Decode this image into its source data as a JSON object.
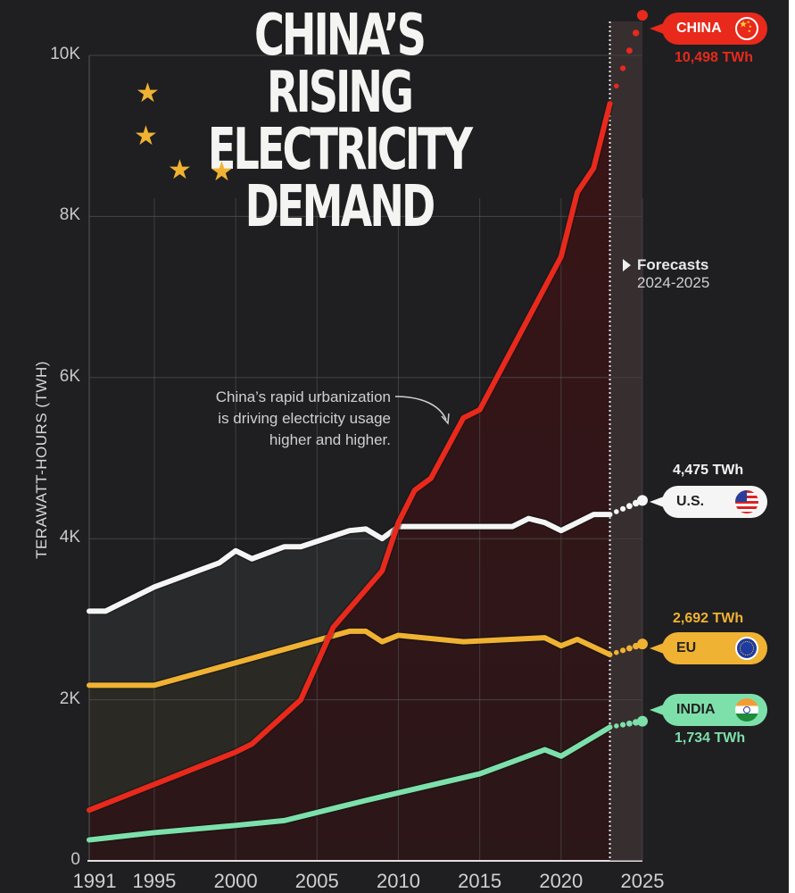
{
  "header": {
    "title_lines": [
      "CHINA’S RISING",
      "ELECTRICITY",
      "DEMAND"
    ],
    "decoration": "star-icon"
  },
  "annotation": {
    "lines": [
      "China’s rapid urbanization",
      "is driving electricity usage",
      "higher and higher."
    ]
  },
  "forecast": {
    "label": "Forecasts",
    "range": "2024-2025"
  },
  "callouts": {
    "china": {
      "name": "CHINA",
      "value": "10,498 TWh",
      "flag": "china-flag-icon"
    },
    "us": {
      "name": "U.S.",
      "value": "4,475 TWh",
      "flag": "us-flag-icon"
    },
    "eu": {
      "name": "EU",
      "value": "2,692 TWh",
      "flag": "eu-flag-icon"
    },
    "india": {
      "name": "INDIA",
      "value": "1,734 TWh",
      "flag": "india-flag-icon"
    }
  },
  "colors": {
    "background": "#1f1f21",
    "china": "#e8291c",
    "us": "#f5f5f5",
    "eu": "#f0b232",
    "india": "#7de0ab",
    "star": "#f0b232"
  },
  "chart_data": {
    "type": "line",
    "title": "China’s Rising Electricity Demand",
    "xlabel": "",
    "ylabel": "TERAWATT-HOURS (TWH)",
    "xlim": [
      1991,
      2025
    ],
    "ylim": [
      0,
      10000
    ],
    "x_ticks": [
      "1991",
      "1995",
      "2000",
      "2005",
      "2010",
      "2015",
      "2020",
      "2025"
    ],
    "x_tick_values": [
      1991,
      1995,
      2000,
      2005,
      2010,
      2015,
      2020,
      2025
    ],
    "y_ticks": [
      "0",
      "2K",
      "4K",
      "6K",
      "8K",
      "10K"
    ],
    "y_tick_values": [
      0,
      2000,
      4000,
      6000,
      8000,
      10000
    ],
    "grid": true,
    "forecast_start": 2023,
    "series": [
      {
        "name": "China",
        "key": "china",
        "x": [
          1991,
          1995,
          2000,
          2001,
          2004,
          2006,
          2009,
          2010,
          2011,
          2012,
          2014,
          2015,
          2020,
          2021,
          2022,
          2023
        ],
        "values": [
          630,
          950,
          1350,
          1450,
          2000,
          2900,
          3600,
          4200,
          4600,
          4750,
          5500,
          5600,
          7500,
          8300,
          8600,
          9400
        ],
        "forecast_x": [
          2025
        ],
        "forecast_values": [
          10498
        ]
      },
      {
        "name": "U.S.",
        "key": "us",
        "x": [
          1991,
          1992,
          1995,
          1999,
          2000,
          2001,
          2003,
          2004,
          2007,
          2008,
          2009,
          2010,
          2017,
          2018,
          2019,
          2020,
          2021,
          2022,
          2023
        ],
        "values": [
          3100,
          3100,
          3400,
          3700,
          3850,
          3750,
          3900,
          3900,
          4100,
          4120,
          4000,
          4150,
          4150,
          4250,
          4200,
          4100,
          4200,
          4300,
          4300
        ],
        "forecast_x": [
          2025
        ],
        "forecast_values": [
          4475
        ]
      },
      {
        "name": "EU",
        "key": "eu",
        "x": [
          1991,
          1995,
          2007,
          2008,
          2009,
          2010,
          2014,
          2019,
          2020,
          2021,
          2023
        ],
        "values": [
          2180,
          2180,
          2850,
          2850,
          2720,
          2800,
          2720,
          2770,
          2670,
          2750,
          2560
        ],
        "forecast_x": [
          2025
        ],
        "forecast_values": [
          2692
        ]
      },
      {
        "name": "India",
        "key": "india",
        "x": [
          1991,
          1995,
          2000,
          2003,
          2008,
          2015,
          2019,
          2020,
          2023
        ],
        "values": [
          260,
          350,
          440,
          500,
          750,
          1080,
          1380,
          1300,
          1660
        ],
        "forecast_x": [
          2025
        ],
        "forecast_values": [
          1734
        ]
      }
    ]
  }
}
